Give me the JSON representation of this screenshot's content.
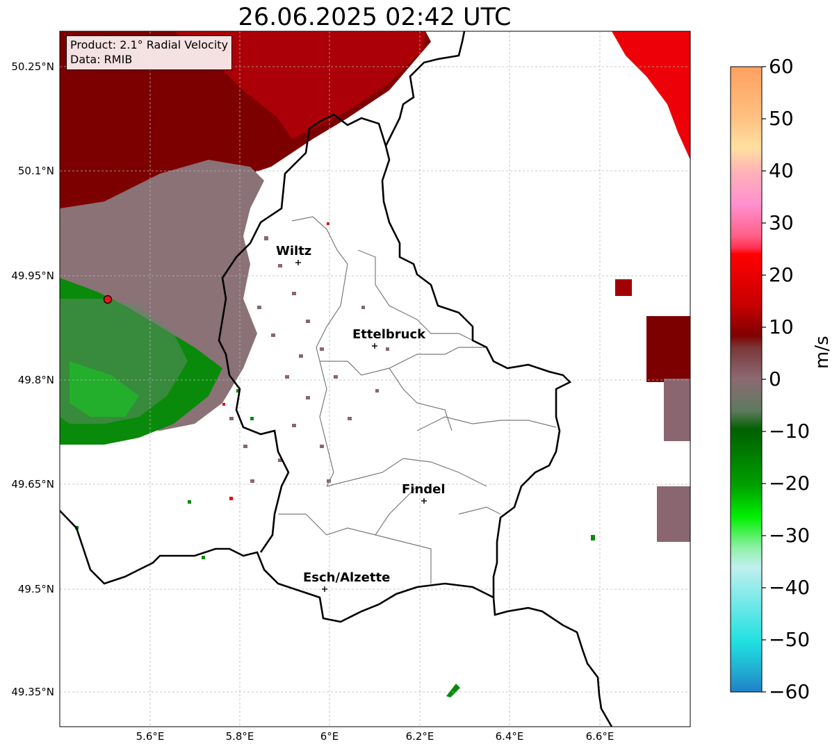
{
  "title": "26.06.2025 02:42 UTC",
  "info": {
    "product": "Product: 2.1° Radial Velocity",
    "data_source": "Data: RMIB"
  },
  "lat_labels": [
    "50.25°N",
    "50.1°N",
    "49.95°N",
    "49.8°N",
    "49.65°N",
    "49.5°N",
    "49.35°N"
  ],
  "lon_labels": [
    "5.6°E",
    "5.8°E",
    "6°E",
    "6.2°E",
    "6.4°E",
    "6.6°E"
  ],
  "cities": [
    {
      "name": "Wiltz"
    },
    {
      "name": "Ettelbruck"
    },
    {
      "name": "Findel"
    },
    {
      "name": "Esch/Alzette"
    }
  ],
  "colorbar": {
    "unit": "m/s",
    "ticks": [
      "60",
      "50",
      "40",
      "30",
      "20",
      "10",
      "0",
      "−10",
      "−20",
      "−30",
      "−40",
      "−50",
      "−60"
    ],
    "min": -60,
    "max": 60
  },
  "colors": {
    "strong_receding": "#e8000a",
    "receding": "#7a0000",
    "near_zero_positive": "#8c6a70",
    "near_zero_negative": "#5f8a66",
    "approaching": "#0a8a0a",
    "strong_approaching": "#13e01f",
    "radar_site": "#e8141e"
  }
}
